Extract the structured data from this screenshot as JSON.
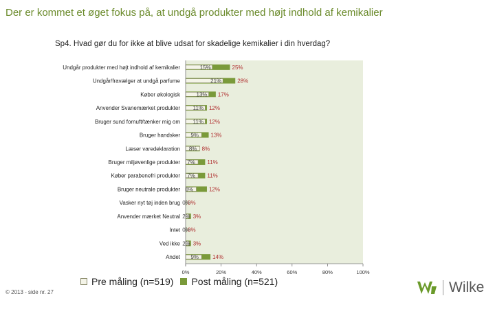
{
  "slide": {
    "title": "Der er kommet et øget fokus på, at undgå produkter med højt indhold af kemikalier",
    "question": "Sp4. Hvad gør du for ikke at blive udsat for skadelige kemikalier i din hverdag?",
    "footer": "© 2013 - side nr. 27",
    "logo_text": "Wilke"
  },
  "colors": {
    "title": "#6a8a2a",
    "plot_background": "#e9eedd",
    "pre_fill": "#f4f4e8",
    "pre_border": "#8a8a6a",
    "post_fill": "#7a9a3a",
    "label_pre": "#444444",
    "label_post": "#b03030",
    "logo_green": "#6a9a2a"
  },
  "chart_data": {
    "type": "bar",
    "orientation": "horizontal",
    "categories": [
      "Undgår produkter med højt indhold af kemikalier",
      "Undgår/fravælger at undgå parfume",
      "Køber økologisk",
      "Anvender Svanemærket produkter",
      "Bruger sund fornuft/tænker mig om",
      "Bruger handsker",
      "Læser varedeklaration",
      "Bruger miljøvenlige produkter",
      "Køber parabenefri produkter",
      "Bruger neutrale produkter",
      "Vasker nyt tøj inden brug",
      "Anvender mærket Neutral",
      "Intet",
      "Ved ikke",
      "Andet"
    ],
    "series": [
      {
        "name": "Pre måling (n=519)",
        "values": [
          15,
          21,
          13,
          11,
          11,
          9,
          8,
          7,
          7,
          6,
          0,
          2,
          0,
          2,
          9
        ],
        "labels": [
          "15%",
          "21%",
          "13%",
          "11%",
          "11%",
          "9%",
          "8%",
          "7%",
          "7%",
          "6%",
          "0%",
          "2%",
          "0%",
          "2%",
          "9%"
        ]
      },
      {
        "name": "Post måling (n=521)",
        "values": [
          25,
          28,
          17,
          12,
          12,
          13,
          8,
          11,
          11,
          12,
          0,
          3,
          0,
          3,
          14
        ],
        "labels": [
          "25%",
          "28%",
          "17%",
          "12%",
          "12%",
          "13%",
          "8%",
          "11%",
          "11%",
          "12%",
          "0%",
          "3%",
          "0%",
          "3%",
          "14%"
        ]
      }
    ],
    "xlim": [
      0,
      100
    ],
    "xticks": [
      "0%",
      "20%",
      "40%",
      "60%",
      "80%",
      "100%"
    ],
    "legend_position": "bottom",
    "grid": false
  }
}
